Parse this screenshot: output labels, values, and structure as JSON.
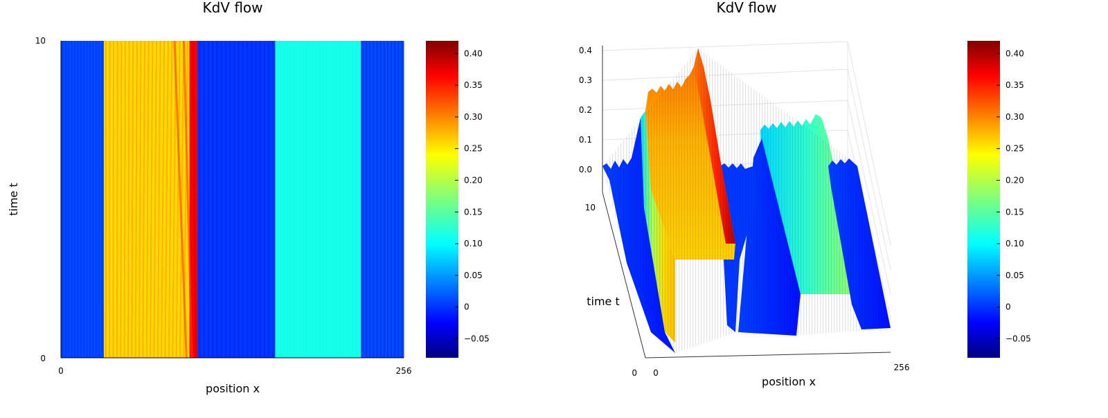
{
  "chart_data": [
    {
      "type": "heatmap",
      "title": "KdV flow",
      "xlabel": "position x",
      "ylabel": "time t",
      "xlim": [
        0,
        256
      ],
      "ylim": [
        0,
        10
      ],
      "x_ticks": [
        "0",
        "256"
      ],
      "y_ticks": [
        "0",
        "10"
      ],
      "colorbar": {
        "range": [
          -0.08,
          0.42
        ],
        "ticks": [
          -0.05,
          0,
          0.05,
          0.1,
          0.15,
          0.2,
          0.25,
          0.3,
          0.35,
          0.4
        ],
        "tick_labels": [
          "−0.05",
          "0",
          "0.05",
          "0.10",
          "0.15",
          "0.20",
          "0.25",
          "0.30",
          "0.35",
          "0.40"
        ]
      },
      "colormap": "jet",
      "bands": [
        {
          "x0": 0,
          "x1": 32,
          "level": 0.02
        },
        {
          "x0": 32,
          "x1": 96,
          "level": 0.25
        },
        {
          "x0": 96,
          "x1": 102,
          "level": 0.36
        },
        {
          "x0": 102,
          "x1": 160,
          "level": 0.01
        },
        {
          "x0": 160,
          "x1": 224,
          "level": 0.12
        },
        {
          "x0": 224,
          "x1": 256,
          "level": 0.02
        }
      ]
    },
    {
      "type": "surface",
      "title": "KdV flow",
      "xlabel": "position x",
      "ylabel": "time t",
      "x_ticks": [
        "0",
        "256"
      ],
      "y_ticks": [
        "0",
        "10"
      ],
      "z_ticks": [
        "0.0",
        "0.1",
        "0.2",
        "0.3",
        "0.4"
      ],
      "zlim": [
        0,
        0.42
      ],
      "colorbar": {
        "range": [
          -0.08,
          0.42
        ],
        "ticks": [
          -0.05,
          0,
          0.05,
          0.1,
          0.15,
          0.2,
          0.25,
          0.3,
          0.35,
          0.4
        ],
        "tick_labels": [
          "−0.05",
          "0",
          "0.05",
          "0.10",
          "0.15",
          "0.20",
          "0.25",
          "0.30",
          "0.35",
          "0.40"
        ]
      },
      "colormap": "jet"
    }
  ]
}
